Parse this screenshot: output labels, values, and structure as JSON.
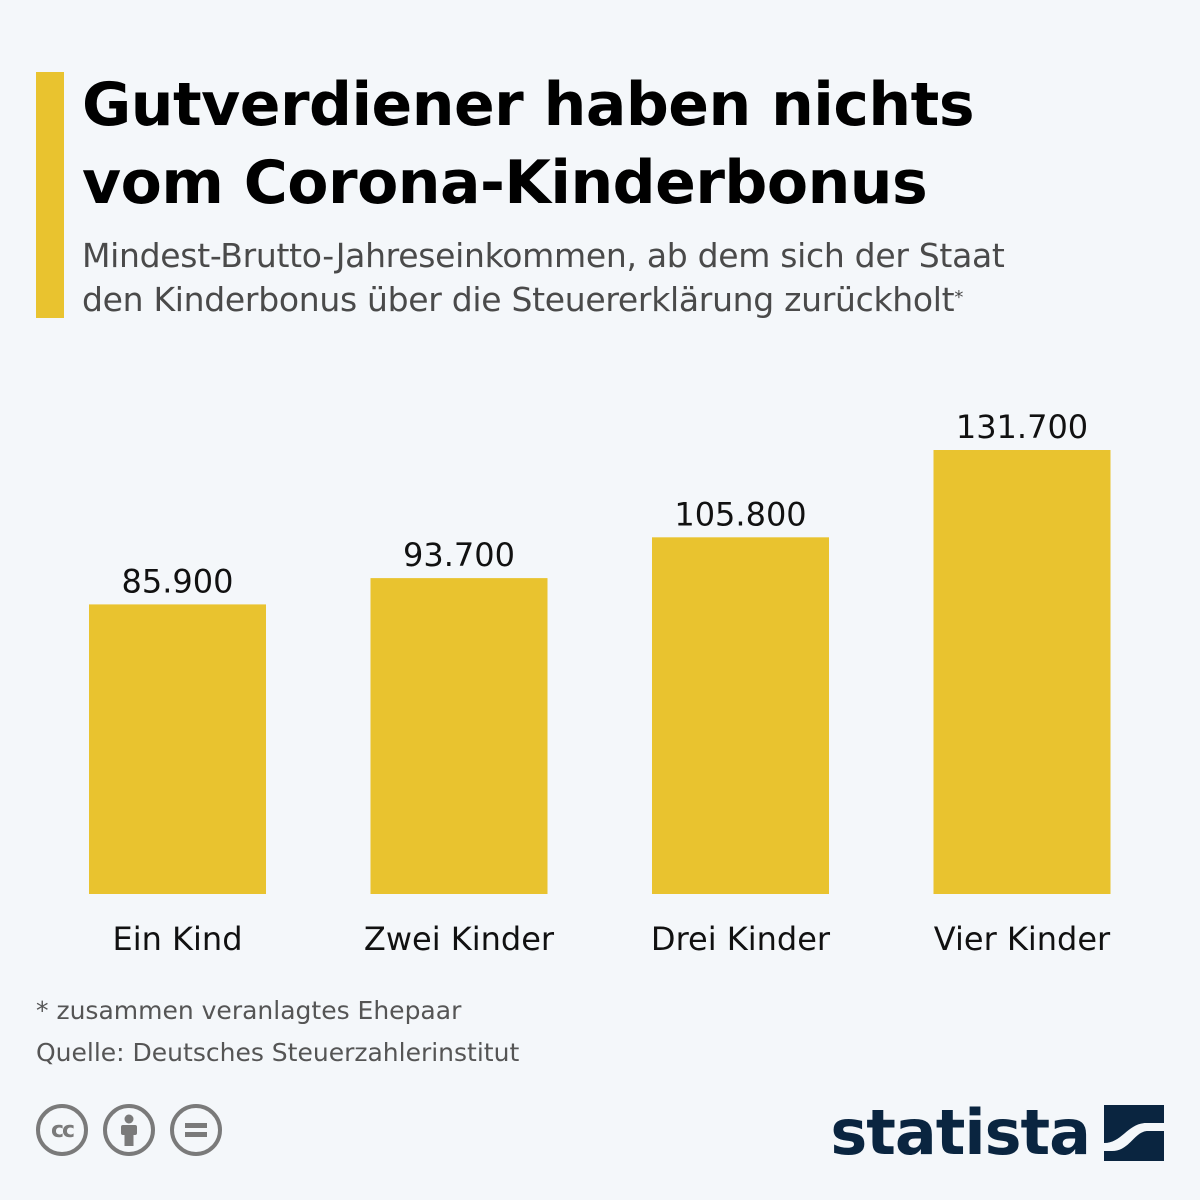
{
  "header": {
    "title_line1": "Gutverdiener haben nichts",
    "title_line2": "vom Corona-Kinderbonus",
    "subtitle_line1": "Mindest-Brutto-Jahreseinkommen, ab dem sich der Staat",
    "subtitle_line2": "den Kinderbonus über die Steuererklärung zurückholt",
    "subtitle_marker": "*"
  },
  "colors": {
    "accent": "#e9c32f",
    "bar": "#e9c32f",
    "background": "#f4f7fa",
    "brand": "#0a2540"
  },
  "chart_data": {
    "type": "bar",
    "title": "Gutverdiener haben nichts vom Corona-Kinderbonus",
    "subtitle": "Mindest-Brutto-Jahreseinkommen, ab dem sich der Staat den Kinderbonus über die Steuererklärung zurückholt*",
    "categories": [
      "Ein Kind",
      "Zwei Kinder",
      "Drei Kinder",
      "Vier Kinder"
    ],
    "values": [
      85900,
      93700,
      105800,
      131700
    ],
    "value_labels": [
      "85.900",
      "93.700",
      "105.800",
      "131.700"
    ],
    "ylim": [
      0,
      131700
    ],
    "grid": false,
    "legend": "none"
  },
  "footer": {
    "note": "* zusammen veranlagtes Ehepaar",
    "source": "Quelle: Deutsches Steuerzahlerinstitut",
    "license_icons": [
      "cc-icon",
      "by-icon",
      "nd-icon"
    ],
    "cc_label": "cc",
    "brand": "statista"
  }
}
